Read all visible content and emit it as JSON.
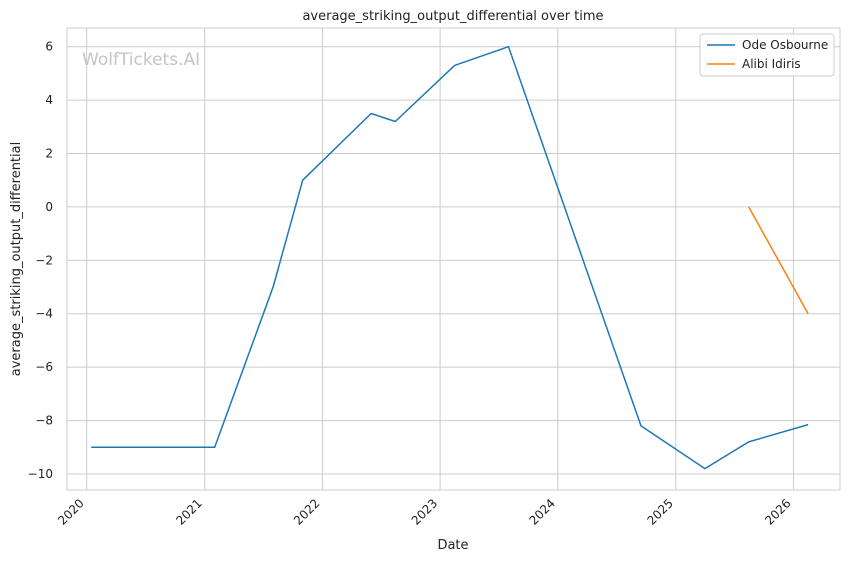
{
  "chart_data": {
    "type": "line",
    "title": "average_striking_output_differential over time",
    "xlabel": "Date",
    "ylabel": "average_striking_output_differential",
    "watermark": "WolfTickets.AI",
    "x_ticks": [
      "2020",
      "2021",
      "2022",
      "2023",
      "2024",
      "2025",
      "2026"
    ],
    "y_ticks": [
      6,
      4,
      2,
      0,
      -2,
      -4,
      -6,
      -8,
      -10
    ],
    "y_tick_labels": [
      "6",
      "4",
      "2",
      "0",
      "−2",
      "−4",
      "−6",
      "−8",
      "−10"
    ],
    "xlim": [
      "2019-11-01",
      "2026-05-25"
    ],
    "ylim": [
      -10.6,
      6.7
    ],
    "grid": true,
    "legend_position": "top-right",
    "series": [
      {
        "name": "Ode Osbourne",
        "color": "#1f77b4",
        "points": [
          {
            "x": "2020-01-15",
            "y": -9.0
          },
          {
            "x": "2021-02-01",
            "y": -9.0
          },
          {
            "x": "2021-08-01",
            "y": -3.0
          },
          {
            "x": "2021-11-01",
            "y": 1.0
          },
          {
            "x": "2022-06-01",
            "y": 3.5
          },
          {
            "x": "2022-08-15",
            "y": 3.2
          },
          {
            "x": "2023-02-15",
            "y": 5.3
          },
          {
            "x": "2023-08-01",
            "y": 6.0
          },
          {
            "x": "2024-09-15",
            "y": -8.2
          },
          {
            "x": "2025-04-01",
            "y": -9.8
          },
          {
            "x": "2025-08-15",
            "y": -8.8
          },
          {
            "x": "2026-02-15",
            "y": -8.15
          }
        ]
      },
      {
        "name": "Alibi Idiris",
        "color": "#ff7f0e",
        "points": [
          {
            "x": "2025-08-15",
            "y": 0.0
          },
          {
            "x": "2026-02-15",
            "y": -4.0
          }
        ]
      }
    ]
  }
}
